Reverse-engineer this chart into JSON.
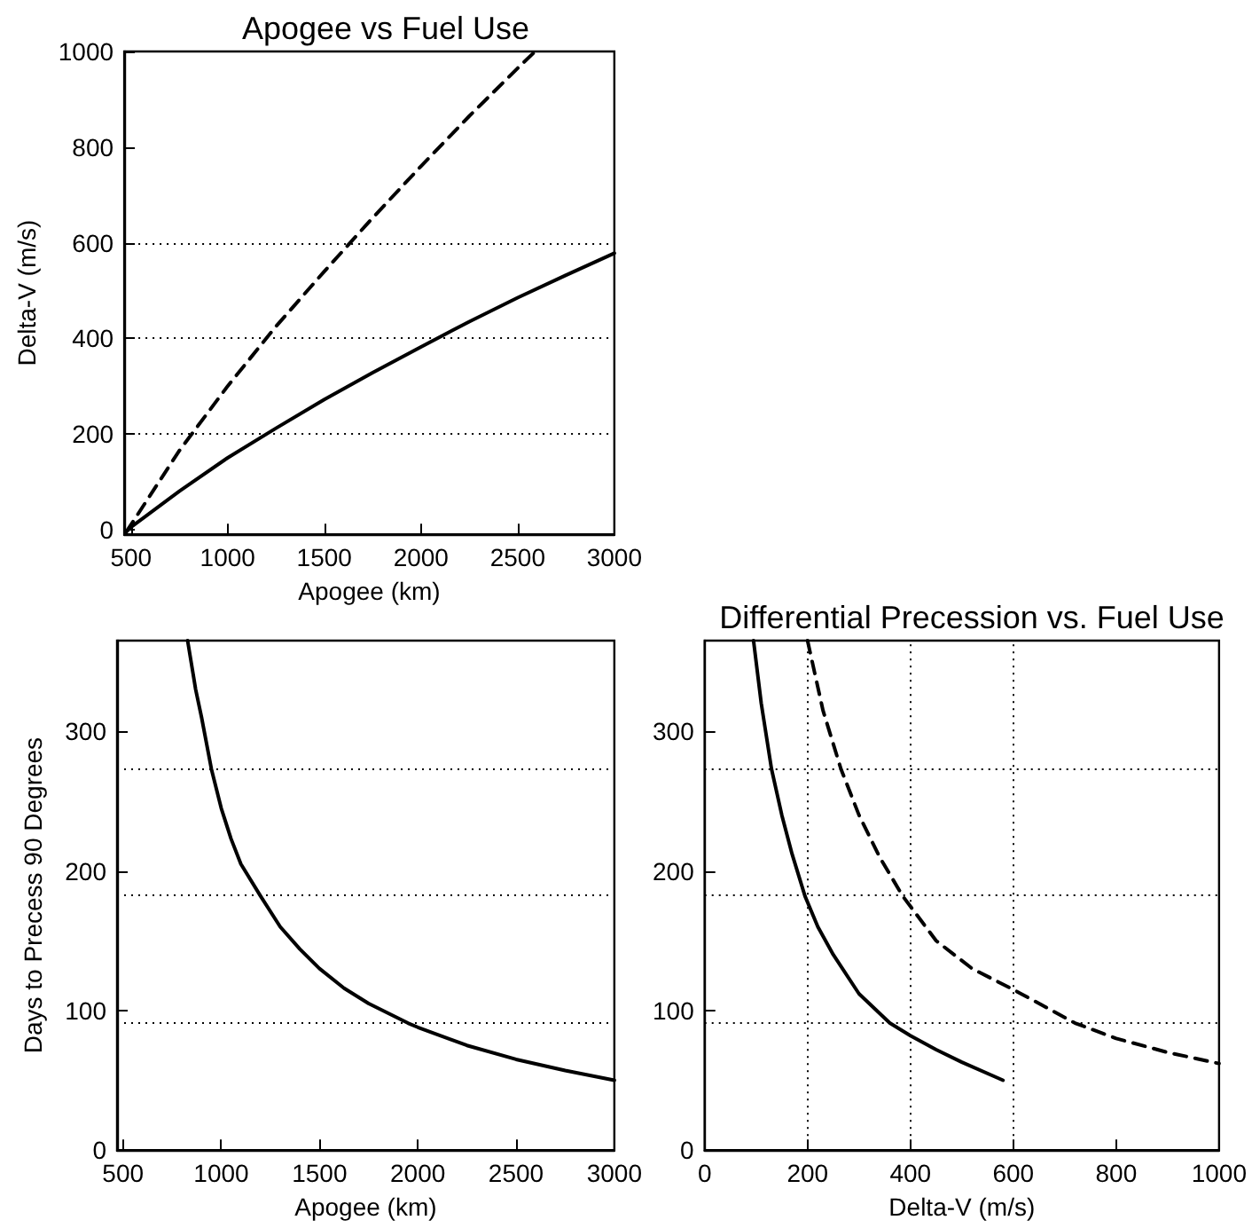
{
  "chart_data": [
    {
      "type": "line",
      "title": "Apogee vs Fuel Use",
      "xlabel": "Apogee (km)",
      "ylabel": "Delta-V (m/s)",
      "xlim": [
        465,
        3000
      ],
      "ylim": [
        -10,
        1000
      ],
      "xticks": [
        500,
        1000,
        1500,
        2000,
        2500,
        3000
      ],
      "yticks": [
        0,
        200,
        400,
        600,
        800,
        1000
      ],
      "grid": false,
      "marker": "none",
      "ref_lines": [
        {
          "axis": "y",
          "value": 200,
          "color": "#000000",
          "line_style": "dotted"
        },
        {
          "axis": "y",
          "value": 400,
          "color": "#000000",
          "line_style": "dotted"
        },
        {
          "axis": "y",
          "value": 600,
          "color": "#000000",
          "line_style": "dotted"
        }
      ],
      "series": [
        {
          "color": "#000000",
          "line_style": "solid",
          "x": [
            475,
            500,
            750,
            1000,
            1250,
            1500,
            1750,
            2000,
            2250,
            2500,
            2750,
            3000
          ],
          "values": [
            -5,
            5,
            80,
            150,
            212,
            272,
            328,
            382,
            435,
            485,
            532,
            578
          ]
        },
        {
          "color": "#000000",
          "line_style": "dashed",
          "x": [
            475,
            500,
            750,
            1000,
            1250,
            1500,
            1750,
            2000,
            2250,
            2500,
            2590
          ],
          "values": [
            -5,
            10,
            165,
            300,
            425,
            540,
            652,
            760,
            865,
            965,
            1000
          ]
        }
      ]
    },
    {
      "type": "line",
      "xlabel": "Apogee (km)",
      "ylabel": "Days to Precess 90 Degrees",
      "xlim": [
        470,
        3000
      ],
      "ylim": [
        0,
        365
      ],
      "xticks": [
        500,
        1000,
        1500,
        2000,
        2500,
        3000
      ],
      "yticks": [
        0,
        100,
        200,
        300
      ],
      "grid": false,
      "marker": "none",
      "ref_lines": [
        {
          "axis": "y",
          "value": 91.25,
          "color": "#000000",
          "line_style": "dotted"
        },
        {
          "axis": "y",
          "value": 182.5,
          "color": "#000000",
          "line_style": "dotted"
        },
        {
          "axis": "y",
          "value": 273.75,
          "color": "#000000",
          "line_style": "dotted"
        }
      ],
      "series": [
        {
          "color": "#000000",
          "line_style": "solid",
          "x": [
            829,
            870,
            900,
            950,
            1000,
            1050,
            1100,
            1200,
            1300,
            1400,
            1500,
            1625,
            1750,
            1950,
            2000,
            2250,
            2500,
            2750,
            3000
          ],
          "values": [
            365,
            330,
            310,
            273,
            245,
            223,
            205,
            182,
            160,
            144,
            130,
            116,
            105,
            91,
            88,
            75,
            65,
            57,
            50
          ]
        }
      ]
    },
    {
      "type": "line",
      "title": "Differential Precession vs. Fuel Use",
      "xlabel": "Delta-V (m/s)",
      "xlim": [
        0,
        1000
      ],
      "ylim": [
        0,
        365
      ],
      "xticks": [
        0,
        200,
        400,
        600,
        800,
        1000
      ],
      "yticks": [
        0,
        100,
        200,
        300
      ],
      "grid": false,
      "marker": "none",
      "ref_lines": [
        {
          "axis": "y",
          "value": 91.25,
          "color": "#000000",
          "line_style": "dotted"
        },
        {
          "axis": "y",
          "value": 182.5,
          "color": "#000000",
          "line_style": "dotted"
        },
        {
          "axis": "y",
          "value": 273.75,
          "color": "#000000",
          "line_style": "dotted"
        },
        {
          "axis": "x",
          "value": 200,
          "color": "#000000",
          "line_style": "dotted"
        },
        {
          "axis": "x",
          "value": 400,
          "color": "#000000",
          "line_style": "dotted"
        },
        {
          "axis": "x",
          "value": 600,
          "color": "#000000",
          "line_style": "dotted"
        }
      ],
      "series": [
        {
          "color": "#000000",
          "line_style": "solid",
          "x": [
            95,
            110,
            130,
            150,
            170,
            195,
            220,
            250,
            300,
            360,
            400,
            450,
            500,
            580
          ],
          "values": [
            365,
            320,
            273,
            240,
            212,
            182,
            160,
            140,
            112,
            91,
            82,
            72,
            63,
            50
          ]
        },
        {
          "color": "#000000",
          "line_style": "dashed",
          "x": [
            200,
            230,
            265,
            300,
            340,
            385,
            450,
            520,
            600,
            720,
            800,
            900,
            1000
          ],
          "values": [
            365,
            315,
            273,
            240,
            210,
            182,
            150,
            130,
            115,
            91,
            80,
            70,
            62
          ]
        }
      ]
    }
  ]
}
